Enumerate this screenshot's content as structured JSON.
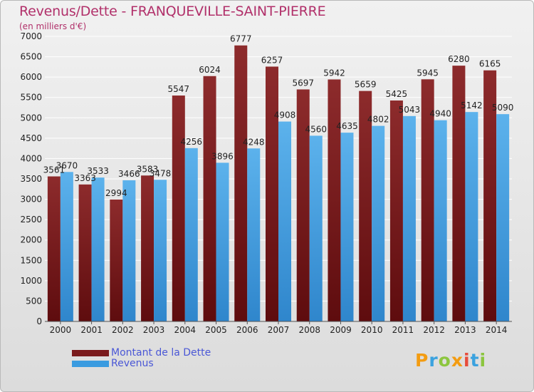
{
  "title": "Revenus/Dette - FRANQUEVILLE-SAINT-PIERRE",
  "subtitle": "(en milliers d'€)",
  "logo": {
    "text": "Proxiti",
    "letter_colors": [
      "#f39c12",
      "#3ba2df",
      "#8cc63f",
      "#f39c12",
      "#e74c3c",
      "#3ba2df",
      "#8cc63f"
    ]
  },
  "legend": [
    {
      "label": "Montant de la Dette",
      "color": "#7a1a1c"
    },
    {
      "label": "Revenus",
      "color": "#3a9be0"
    }
  ],
  "chart_data": {
    "type": "bar",
    "title": "Revenus/Dette - FRANQUEVILLE-SAINT-PIERRE",
    "ylabel": "(en milliers d'€)",
    "categories": [
      "2000",
      "2001",
      "2002",
      "2003",
      "2004",
      "2005",
      "2006",
      "2007",
      "2008",
      "2009",
      "2010",
      "2011",
      "2012",
      "2013",
      "2014"
    ],
    "series": [
      {
        "name": "Montant de la Dette",
        "color": "#7a1a1c",
        "labels": [
          "3561",
          "3363",
          "2994",
          "3583",
          "5547",
          "6024",
          "6777",
          "6257",
          "5697",
          "5942",
          "5659",
          "5425",
          "5945",
          "6280",
          "6165"
        ],
        "values": [
          3561,
          3363,
          2994,
          3583,
          5547,
          6024,
          6777,
          6257,
          5697,
          5942,
          5659,
          5425,
          5945,
          6280,
          6165
        ]
      },
      {
        "name": "Revenus",
        "color": "#3a9be0",
        "labels": [
          "3670",
          "3533",
          "3466",
          "3478",
          "4256",
          "3896",
          "4248",
          "4908",
          "4560",
          "4635",
          "4802",
          "5043",
          "4940",
          "5142",
          "5090"
        ],
        "values": [
          3670,
          3533,
          3466,
          3478,
          4256,
          3896,
          4248,
          4908,
          4560,
          4635,
          4802,
          5043,
          4940,
          5142,
          5090
        ]
      }
    ],
    "yticks": [
      "0",
      "500",
      "1000",
      "1500",
      "2000",
      "2500",
      "3000",
      "3500",
      "4000",
      "4500",
      "5000",
      "5500",
      "6000",
      "6500",
      "7000"
    ],
    "ylim": [
      0,
      7000
    ],
    "grid": true
  }
}
